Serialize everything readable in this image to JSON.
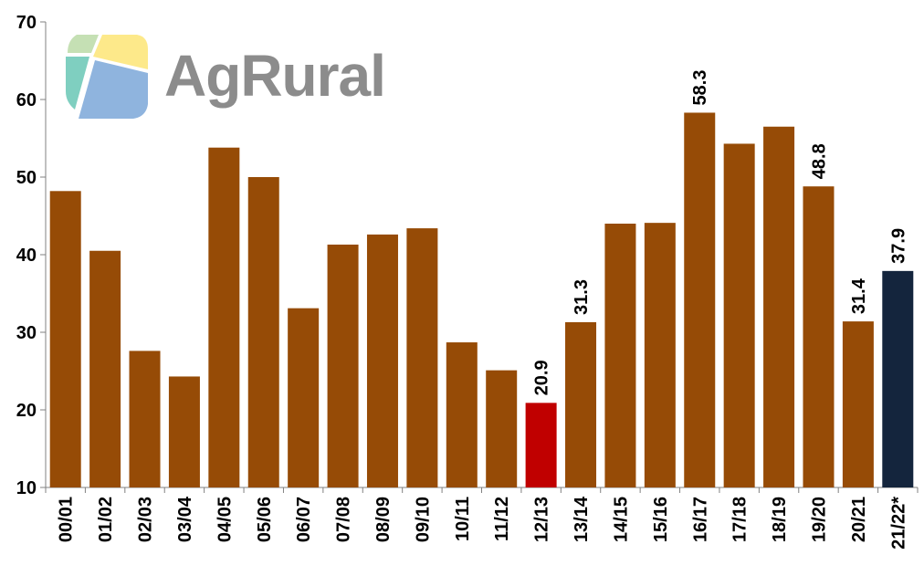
{
  "logo": {
    "text": "AgRural",
    "colors": {
      "green": "#c5e0b4",
      "yellow": "#fde98a",
      "teal": "#7fcfc0",
      "blue": "#8fb4de",
      "text": "#8c8c8c"
    }
  },
  "colors": {
    "default_bar": "#964b06",
    "low_highlight": "#c00000",
    "forecast": "#14253d"
  },
  "chart_data": {
    "type": "bar",
    "title": "",
    "xlabel": "",
    "ylabel": "",
    "ylim": [
      10,
      70
    ],
    "yticks": [
      10,
      20,
      30,
      40,
      50,
      60,
      70
    ],
    "grid": false,
    "categories": [
      "00/01",
      "01/02",
      "02/03",
      "03/04",
      "04/05",
      "05/06",
      "06/07",
      "07/08",
      "08/09",
      "09/10",
      "10/11",
      "11/12",
      "12/13",
      "13/14",
      "14/15",
      "15/16",
      "16/17",
      "17/18",
      "18/19",
      "19/20",
      "20/21",
      "21/22*"
    ],
    "values": [
      48.2,
      40.5,
      27.6,
      24.3,
      53.8,
      50.0,
      33.1,
      41.3,
      42.6,
      43.4,
      28.7,
      25.1,
      20.9,
      31.3,
      44.0,
      44.1,
      58.3,
      54.3,
      56.5,
      48.8,
      31.4,
      37.9
    ],
    "bar_colors": [
      "#964b06",
      "#964b06",
      "#964b06",
      "#964b06",
      "#964b06",
      "#964b06",
      "#964b06",
      "#964b06",
      "#964b06",
      "#964b06",
      "#964b06",
      "#964b06",
      "#c00000",
      "#964b06",
      "#964b06",
      "#964b06",
      "#964b06",
      "#964b06",
      "#964b06",
      "#964b06",
      "#964b06",
      "#14253d"
    ],
    "data_labels": [
      "",
      "",
      "",
      "",
      "",
      "",
      "",
      "",
      "",
      "",
      "",
      "",
      "20.9",
      "31.3",
      "",
      "",
      "58.3",
      "",
      "",
      "48.8",
      "31.4",
      "37.9"
    ]
  }
}
